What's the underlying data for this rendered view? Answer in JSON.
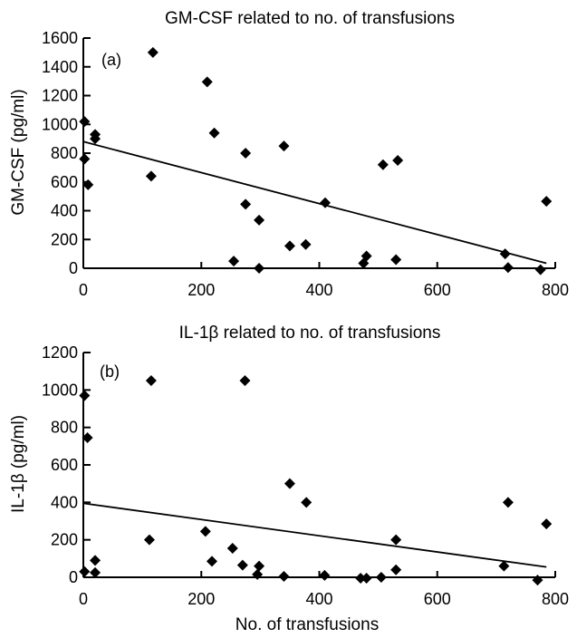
{
  "chart_data": [
    {
      "type": "scatter",
      "panel_label": "(a)",
      "title": "GM-CSF related to no. of transfusions",
      "xlabel": "",
      "ylabel": "GM-CSF (pg/ml)",
      "xlim": [
        0,
        800
      ],
      "ylim": [
        0,
        1600
      ],
      "xticks": [
        0,
        200,
        400,
        600,
        800
      ],
      "yticks": [
        0,
        200,
        400,
        600,
        800,
        1000,
        1200,
        1400,
        1600
      ],
      "points": [
        {
          "x": 2,
          "y": 1020
        },
        {
          "x": 2,
          "y": 760
        },
        {
          "x": 8,
          "y": 580
        },
        {
          "x": 20,
          "y": 930
        },
        {
          "x": 20,
          "y": 900
        },
        {
          "x": 115,
          "y": 640
        },
        {
          "x": 118,
          "y": 1500
        },
        {
          "x": 210,
          "y": 1295
        },
        {
          "x": 222,
          "y": 940
        },
        {
          "x": 255,
          "y": 50
        },
        {
          "x": 275,
          "y": 800
        },
        {
          "x": 275,
          "y": 445
        },
        {
          "x": 298,
          "y": 335
        },
        {
          "x": 298,
          "y": 0
        },
        {
          "x": 340,
          "y": 850
        },
        {
          "x": 350,
          "y": 155
        },
        {
          "x": 377,
          "y": 165
        },
        {
          "x": 410,
          "y": 455
        },
        {
          "x": 475,
          "y": 35
        },
        {
          "x": 480,
          "y": 85
        },
        {
          "x": 508,
          "y": 720
        },
        {
          "x": 530,
          "y": 60
        },
        {
          "x": 533,
          "y": 750
        },
        {
          "x": 715,
          "y": 100
        },
        {
          "x": 720,
          "y": 5
        },
        {
          "x": 775,
          "y": -10
        },
        {
          "x": 785,
          "y": 465
        }
      ],
      "trendline": {
        "x": [
          0,
          785
        ],
        "y": [
          880,
          35
        ]
      }
    },
    {
      "type": "scatter",
      "panel_label": "(b)",
      "title": "IL-1β related to no. of transfusions",
      "xlabel": "No. of transfusions",
      "ylabel": "IL-1β (pg/ml)",
      "xlim": [
        0,
        800
      ],
      "ylim": [
        0,
        1200
      ],
      "xticks": [
        0,
        200,
        400,
        600,
        800
      ],
      "yticks": [
        0,
        200,
        400,
        600,
        800,
        1000,
        1200
      ],
      "points": [
        {
          "x": 2,
          "y": 970
        },
        {
          "x": 7,
          "y": 745
        },
        {
          "x": 2,
          "y": 30
        },
        {
          "x": 20,
          "y": 90
        },
        {
          "x": 20,
          "y": 25
        },
        {
          "x": 112,
          "y": 200
        },
        {
          "x": 115,
          "y": 1050
        },
        {
          "x": 207,
          "y": 245
        },
        {
          "x": 218,
          "y": 85
        },
        {
          "x": 253,
          "y": 155
        },
        {
          "x": 270,
          "y": 65
        },
        {
          "x": 274,
          "y": 1050
        },
        {
          "x": 295,
          "y": 15
        },
        {
          "x": 298,
          "y": 60
        },
        {
          "x": 340,
          "y": 5
        },
        {
          "x": 350,
          "y": 500
        },
        {
          "x": 378,
          "y": 400
        },
        {
          "x": 409,
          "y": 10
        },
        {
          "x": 470,
          "y": -5
        },
        {
          "x": 480,
          "y": -5
        },
        {
          "x": 505,
          "y": 0
        },
        {
          "x": 530,
          "y": 200
        },
        {
          "x": 530,
          "y": 40
        },
        {
          "x": 713,
          "y": 60
        },
        {
          "x": 720,
          "y": 400
        },
        {
          "x": 770,
          "y": -15
        },
        {
          "x": 785,
          "y": 285
        }
      ],
      "trendline": {
        "x": [
          0,
          785
        ],
        "y": [
          395,
          55
        ]
      }
    }
  ]
}
